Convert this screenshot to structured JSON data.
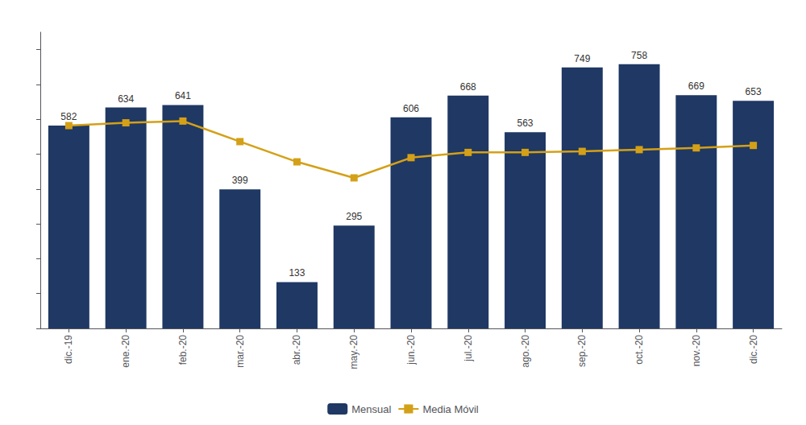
{
  "chart_data": {
    "type": "bar",
    "categories": [
      "dic.-19",
      "ene.-20",
      "feb.-20",
      "mar.-20",
      "abr.-20",
      "may.-20",
      "jun.-20",
      "jul.-20",
      "ago.-20",
      "sep.-20",
      "oct.-20",
      "nov.-20",
      "dic.-20"
    ],
    "series": [
      {
        "name": "Mensual",
        "type": "bar",
        "color": "#1F3864",
        "data_labels": true,
        "values": [
          582,
          634,
          641,
          399,
          133,
          295,
          606,
          668,
          563,
          749,
          758,
          669,
          653
        ]
      },
      {
        "name": "Media Móvil",
        "type": "line",
        "color": "#D4A017",
        "marker": "square",
        "values": [
          582,
          590,
          595,
          536,
          478,
          432,
          490,
          505,
          505,
          508,
          513,
          518,
          525
        ]
      }
    ],
    "ylim": [
      0,
      850
    ],
    "yticks": [
      0,
      100,
      200,
      300,
      400,
      500,
      600,
      700,
      800
    ],
    "tick_labels": "x",
    "grid": false,
    "legend": "bottom"
  }
}
